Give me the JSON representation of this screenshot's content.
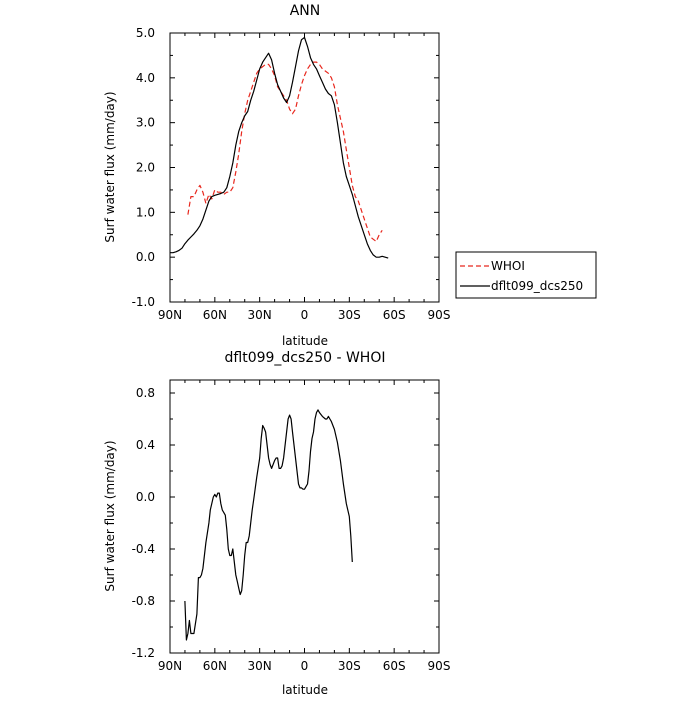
{
  "chart_data": [
    {
      "type": "line",
      "title": "ANN",
      "xlabel": "latitude",
      "ylabel": "Surf water flux (mm/day)",
      "xlim": [
        90,
        -90
      ],
      "ylim": [
        -1.0,
        5.0
      ],
      "xticks": [
        90,
        60,
        30,
        0,
        -30,
        -60,
        -90
      ],
      "xtick_labels": [
        "90N",
        "60N",
        "30N",
        "0",
        "30S",
        "60S",
        "90S"
      ],
      "yticks": [
        -1.0,
        0.0,
        1.0,
        2.0,
        3.0,
        4.0,
        5.0
      ],
      "ytick_labels": [
        "-1.0",
        "0.0",
        "1.0",
        "2.0",
        "3.0",
        "4.0",
        "5.0"
      ],
      "grid": false,
      "legend_position": "right",
      "series": [
        {
          "name": "WHOI",
          "color": "#e8281e",
          "dash": "dashed",
          "points": [
            [
              78,
              0.95
            ],
            [
              76,
              1.35
            ],
            [
              74,
              1.35
            ],
            [
              72,
              1.5
            ],
            [
              70,
              1.6
            ],
            [
              68,
              1.45
            ],
            [
              66,
              1.2
            ],
            [
              64,
              1.4
            ],
            [
              62,
              1.3
            ],
            [
              60,
              1.5
            ],
            [
              58,
              1.45
            ],
            [
              56,
              1.45
            ],
            [
              54,
              1.4
            ],
            [
              52,
              1.45
            ],
            [
              50,
              1.45
            ],
            [
              48,
              1.55
            ],
            [
              46,
              1.9
            ],
            [
              44,
              2.3
            ],
            [
              42,
              2.8
            ],
            [
              40,
              3.2
            ],
            [
              38,
              3.5
            ],
            [
              36,
              3.7
            ],
            [
              34,
              3.9
            ],
            [
              32,
              4.1
            ],
            [
              30,
              4.2
            ],
            [
              28,
              4.25
            ],
            [
              26,
              4.3
            ],
            [
              24,
              4.3
            ],
            [
              22,
              4.2
            ],
            [
              20,
              4.05
            ],
            [
              18,
              3.8
            ],
            [
              16,
              3.7
            ],
            [
              14,
              3.6
            ],
            [
              12,
              3.5
            ],
            [
              10,
              3.3
            ],
            [
              8,
              3.2
            ],
            [
              6,
              3.3
            ],
            [
              4,
              3.6
            ],
            [
              2,
              3.85
            ],
            [
              0,
              4.05
            ],
            [
              -2,
              4.2
            ],
            [
              -4,
              4.3
            ],
            [
              -6,
              4.35
            ],
            [
              -8,
              4.35
            ],
            [
              -10,
              4.3
            ],
            [
              -12,
              4.2
            ],
            [
              -14,
              4.15
            ],
            [
              -16,
              4.1
            ],
            [
              -18,
              4.0
            ],
            [
              -20,
              3.8
            ],
            [
              -22,
              3.4
            ],
            [
              -24,
              3.1
            ],
            [
              -26,
              2.8
            ],
            [
              -28,
              2.4
            ],
            [
              -30,
              2.0
            ],
            [
              -32,
              1.6
            ],
            [
              -34,
              1.35
            ],
            [
              -36,
              1.25
            ],
            [
              -38,
              1.05
            ],
            [
              -40,
              0.85
            ],
            [
              -42,
              0.65
            ],
            [
              -44,
              0.45
            ],
            [
              -46,
              0.4
            ],
            [
              -48,
              0.35
            ],
            [
              -50,
              0.5
            ],
            [
              -52,
              0.6
            ]
          ]
        },
        {
          "name": "dflt099_dcs250",
          "color": "#000000",
          "dash": "solid",
          "points": [
            [
              90,
              0.1
            ],
            [
              88,
              0.1
            ],
            [
              86,
              0.12
            ],
            [
              84,
              0.15
            ],
            [
              82,
              0.2
            ],
            [
              80,
              0.3
            ],
            [
              78,
              0.38
            ],
            [
              76,
              0.45
            ],
            [
              74,
              0.52
            ],
            [
              72,
              0.6
            ],
            [
              70,
              0.7
            ],
            [
              68,
              0.85
            ],
            [
              66,
              1.05
            ],
            [
              64,
              1.25
            ],
            [
              62,
              1.35
            ],
            [
              60,
              1.38
            ],
            [
              58,
              1.4
            ],
            [
              56,
              1.42
            ],
            [
              54,
              1.45
            ],
            [
              52,
              1.55
            ],
            [
              50,
              1.8
            ],
            [
              48,
              2.1
            ],
            [
              46,
              2.5
            ],
            [
              44,
              2.8
            ],
            [
              42,
              3.0
            ],
            [
              40,
              3.15
            ],
            [
              38,
              3.25
            ],
            [
              36,
              3.5
            ],
            [
              34,
              3.7
            ],
            [
              32,
              3.95
            ],
            [
              30,
              4.2
            ],
            [
              28,
              4.35
            ],
            [
              26,
              4.45
            ],
            [
              24,
              4.55
            ],
            [
              22,
              4.4
            ],
            [
              20,
              4.1
            ],
            [
              18,
              3.85
            ],
            [
              16,
              3.7
            ],
            [
              14,
              3.55
            ],
            [
              12,
              3.45
            ],
            [
              10,
              3.6
            ],
            [
              8,
              3.9
            ],
            [
              6,
              4.25
            ],
            [
              4,
              4.6
            ],
            [
              2,
              4.85
            ],
            [
              0,
              4.9
            ],
            [
              -2,
              4.7
            ],
            [
              -4,
              4.45
            ],
            [
              -6,
              4.3
            ],
            [
              -8,
              4.2
            ],
            [
              -10,
              4.05
            ],
            [
              -12,
              3.9
            ],
            [
              -14,
              3.75
            ],
            [
              -16,
              3.65
            ],
            [
              -18,
              3.6
            ],
            [
              -20,
              3.4
            ],
            [
              -22,
              3.0
            ],
            [
              -24,
              2.55
            ],
            [
              -26,
              2.1
            ],
            [
              -28,
              1.8
            ],
            [
              -30,
              1.6
            ],
            [
              -32,
              1.4
            ],
            [
              -34,
              1.15
            ],
            [
              -36,
              0.9
            ],
            [
              -38,
              0.7
            ],
            [
              -40,
              0.5
            ],
            [
              -42,
              0.3
            ],
            [
              -44,
              0.15
            ],
            [
              -46,
              0.05
            ],
            [
              -48,
              0.0
            ],
            [
              -50,
              0.0
            ],
            [
              -52,
              0.02
            ],
            [
              -54,
              0.0
            ],
            [
              -56,
              -0.02
            ]
          ]
        }
      ]
    },
    {
      "type": "line",
      "title": "dflt099_dcs250 - WHOI",
      "xlabel": "latitude",
      "ylabel": "Surf water flux (mm/day)",
      "xlim": [
        90,
        -90
      ],
      "ylim": [
        -1.2,
        0.9
      ],
      "xticks": [
        90,
        60,
        30,
        0,
        -30,
        -60,
        -90
      ],
      "xtick_labels": [
        "90N",
        "60N",
        "30N",
        "0",
        "30S",
        "60S",
        "90S"
      ],
      "yticks": [
        -1.2,
        -0.8,
        -0.4,
        0.0,
        0.4,
        0.8
      ],
      "ytick_labels": [
        "-1.2",
        "-0.8",
        "-0.4",
        "0.0",
        "0.4",
        "0.8"
      ],
      "grid": false,
      "series": [
        {
          "color": "#000000",
          "dash": "solid",
          "points": [
            [
              80,
              -0.8
            ],
            [
              79,
              -1.1
            ],
            [
              78,
              -1.05
            ],
            [
              77,
              -0.95
            ],
            [
              76,
              -1.05
            ],
            [
              74,
              -1.05
            ],
            [
              72,
              -0.9
            ],
            [
              71,
              -0.62
            ],
            [
              70,
              -0.62
            ],
            [
              69,
              -0.6
            ],
            [
              68,
              -0.55
            ],
            [
              66,
              -0.35
            ],
            [
              64,
              -0.2
            ],
            [
              63,
              -0.1
            ],
            [
              62,
              -0.05
            ],
            [
              61,
              0.0
            ],
            [
              60,
              0.02
            ],
            [
              59,
              0.0
            ],
            [
              58,
              0.03
            ],
            [
              57,
              0.03
            ],
            [
              56,
              -0.05
            ],
            [
              55,
              -0.1
            ],
            [
              54,
              -0.12
            ],
            [
              53,
              -0.14
            ],
            [
              52,
              -0.25
            ],
            [
              51,
              -0.4
            ],
            [
              50,
              -0.45
            ],
            [
              49,
              -0.45
            ],
            [
              48,
              -0.4
            ],
            [
              47,
              -0.5
            ],
            [
              46,
              -0.6
            ],
            [
              45,
              -0.65
            ],
            [
              44,
              -0.7
            ],
            [
              43,
              -0.75
            ],
            [
              42,
              -0.72
            ],
            [
              41,
              -0.6
            ],
            [
              40,
              -0.45
            ],
            [
              39,
              -0.35
            ],
            [
              38,
              -0.35
            ],
            [
              37,
              -0.3
            ],
            [
              35,
              -0.1
            ],
            [
              34,
              -0.02
            ],
            [
              32,
              0.15
            ],
            [
              30,
              0.3
            ],
            [
              29,
              0.45
            ],
            [
              28,
              0.55
            ],
            [
              27,
              0.53
            ],
            [
              26,
              0.5
            ],
            [
              25,
              0.4
            ],
            [
              24,
              0.3
            ],
            [
              23,
              0.25
            ],
            [
              22,
              0.22
            ],
            [
              21,
              0.25
            ],
            [
              20,
              0.28
            ],
            [
              19,
              0.3
            ],
            [
              18,
              0.3
            ],
            [
              17,
              0.22
            ],
            [
              16,
              0.22
            ],
            [
              15,
              0.24
            ],
            [
              14,
              0.3
            ],
            [
              13,
              0.4
            ],
            [
              12,
              0.5
            ],
            [
              11,
              0.6
            ],
            [
              10,
              0.63
            ],
            [
              9,
              0.6
            ],
            [
              8,
              0.5
            ],
            [
              7,
              0.4
            ],
            [
              6,
              0.3
            ],
            [
              5,
              0.2
            ],
            [
              4,
              0.1
            ],
            [
              3,
              0.07
            ],
            [
              2,
              0.07
            ],
            [
              1,
              0.06
            ],
            [
              0,
              0.06
            ],
            [
              -1,
              0.08
            ],
            [
              -2,
              0.1
            ],
            [
              -3,
              0.2
            ],
            [
              -4,
              0.35
            ],
            [
              -5,
              0.45
            ],
            [
              -6,
              0.5
            ],
            [
              -7,
              0.6
            ],
            [
              -8,
              0.65
            ],
            [
              -9,
              0.67
            ],
            [
              -10,
              0.65
            ],
            [
              -12,
              0.62
            ],
            [
              -14,
              0.6
            ],
            [
              -15,
              0.6
            ],
            [
              -16,
              0.62
            ],
            [
              -17,
              0.6
            ],
            [
              -18,
              0.58
            ],
            [
              -20,
              0.52
            ],
            [
              -22,
              0.42
            ],
            [
              -24,
              0.28
            ],
            [
              -26,
              0.1
            ],
            [
              -28,
              -0.05
            ],
            [
              -30,
              -0.15
            ],
            [
              -31,
              -0.3
            ],
            [
              -32,
              -0.5
            ]
          ]
        }
      ]
    }
  ]
}
